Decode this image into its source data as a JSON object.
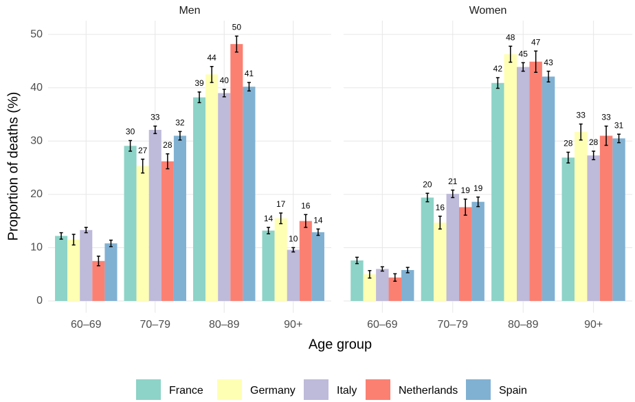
{
  "chart_data": {
    "type": "bar",
    "y_label": "Proportion of deaths (%)",
    "x_label": "Age group",
    "categories": [
      "60–69",
      "70–79",
      "80–89",
      "90+"
    ],
    "ylim": [
      -2.2,
      52.6
    ],
    "yticks": [
      0,
      10,
      20,
      30,
      40,
      50
    ],
    "grid": true,
    "legend": "bottom",
    "series": [
      {
        "name": "France",
        "color": "#8dd3c7"
      },
      {
        "name": "Germany",
        "color": "#ffffb3"
      },
      {
        "name": "Italy",
        "color": "#bebada"
      },
      {
        "name": "Netherlands",
        "color": "#fb8072"
      },
      {
        "name": "Spain",
        "color": "#80b1d3"
      }
    ],
    "facets": [
      {
        "title": "Men",
        "series": [
          {
            "values": [
              12.2,
              29.1,
              38.2,
              13.2
            ],
            "errors": [
              0.6,
              1.0,
              1.0,
              0.6
            ],
            "labels": [
              null,
              30,
              39,
              14
            ]
          },
          {
            "values": [
              11.5,
              25.3,
              42.5,
              15.5
            ],
            "errors": [
              1.0,
              1.3,
              1.5,
              1.0
            ],
            "labels": [
              null,
              27,
              44,
              17
            ]
          },
          {
            "values": [
              13.3,
              32.1,
              39.0,
              9.6
            ],
            "errors": [
              0.5,
              0.7,
              0.7,
              0.4
            ],
            "labels": [
              null,
              33,
              40,
              10
            ]
          },
          {
            "values": [
              7.5,
              26.2,
              48.2,
              15.0
            ],
            "errors": [
              0.9,
              1.4,
              1.5,
              1.2
            ],
            "labels": [
              null,
              28,
              50,
              16
            ]
          },
          {
            "values": [
              10.8,
              31.0,
              40.2,
              12.9
            ],
            "errors": [
              0.6,
              0.8,
              0.8,
              0.6
            ],
            "labels": [
              null,
              32,
              41,
              14
            ]
          }
        ]
      },
      {
        "title": "Women",
        "series": [
          {
            "values": [
              7.6,
              19.4,
              40.9,
              26.9
            ],
            "errors": [
              0.6,
              0.8,
              1.0,
              1.0
            ],
            "labels": [
              null,
              20,
              42,
              28
            ]
          },
          {
            "values": [
              5.0,
              14.7,
              46.3,
              31.7
            ],
            "errors": [
              0.7,
              1.2,
              1.5,
              1.5
            ],
            "labels": [
              null,
              16,
              48,
              33
            ]
          },
          {
            "values": [
              6.0,
              20.1,
              43.9,
              27.3
            ],
            "errors": [
              0.4,
              0.7,
              0.8,
              0.8
            ],
            "labels": [
              null,
              21,
              45,
              28
            ]
          },
          {
            "values": [
              4.4,
              17.6,
              44.9,
              31.0
            ],
            "errors": [
              0.7,
              1.5,
              2.0,
              1.8
            ],
            "labels": [
              null,
              19,
              47,
              33
            ]
          },
          {
            "values": [
              5.8,
              18.6,
              42.1,
              30.5
            ],
            "errors": [
              0.5,
              0.9,
              1.0,
              0.8
            ],
            "labels": [
              null,
              19,
              43,
              31
            ]
          }
        ]
      }
    ]
  }
}
